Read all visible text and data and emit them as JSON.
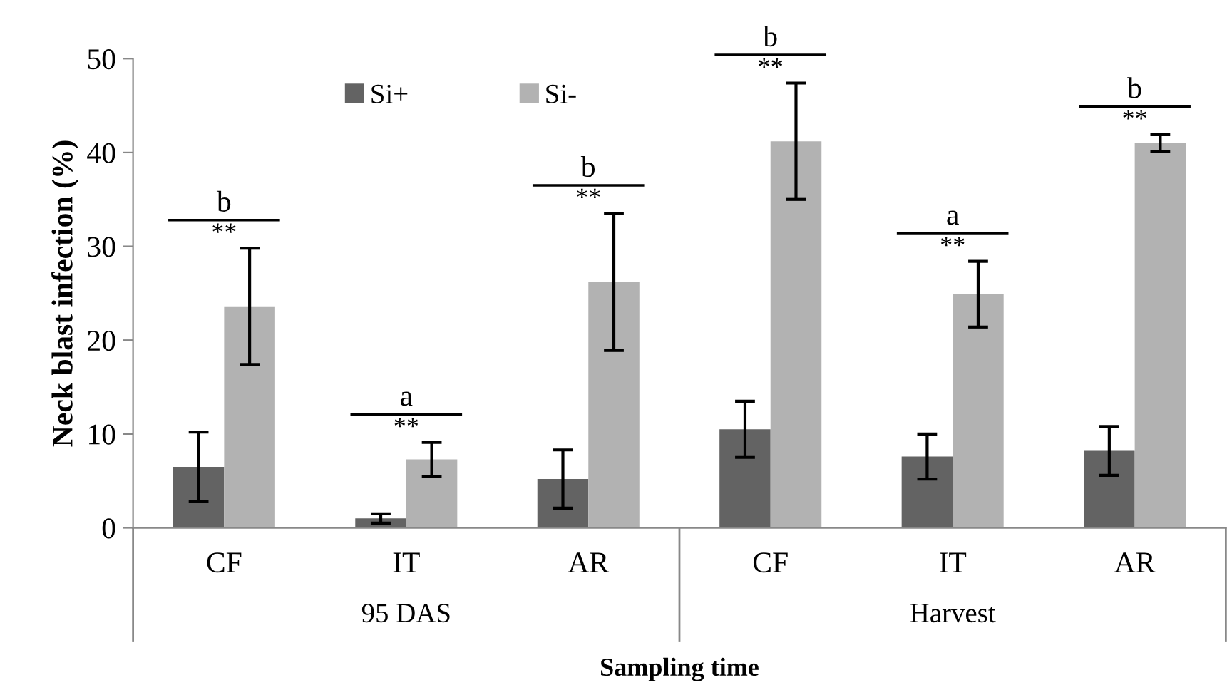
{
  "chart_data": {
    "type": "bar",
    "xlabel": "Sampling time",
    "ylabel": "Neck blast infection (%)",
    "categories": [
      "CF",
      "IT",
      "AR",
      "CF",
      "IT",
      "AR"
    ],
    "series": [
      {
        "name": "Si+",
        "color": "#636363",
        "values": [
          6.5,
          1.0,
          5.2,
          10.5,
          7.6,
          8.2
        ],
        "errors": [
          3.7,
          0.5,
          3.1,
          3.0,
          2.4,
          2.6
        ]
      },
      {
        "name": "Si-",
        "color": "#b2b2b2",
        "values": [
          23.6,
          7.3,
          26.2,
          41.2,
          24.9,
          41.0
        ],
        "errors": [
          6.2,
          1.8,
          7.3,
          6.2,
          3.5,
          0.9
        ]
      }
    ],
    "annotations": [
      "b",
      "**",
      "a",
      "**",
      "b",
      "**",
      "b",
      "**",
      "a",
      "**",
      "b",
      "**",
      "95 DAS",
      "Harvest"
    ],
    "ylim": [
      0,
      50
    ],
    "yticks": [
      0,
      10,
      20,
      30,
      40,
      50
    ],
    "grid": false,
    "legend": "top"
  }
}
